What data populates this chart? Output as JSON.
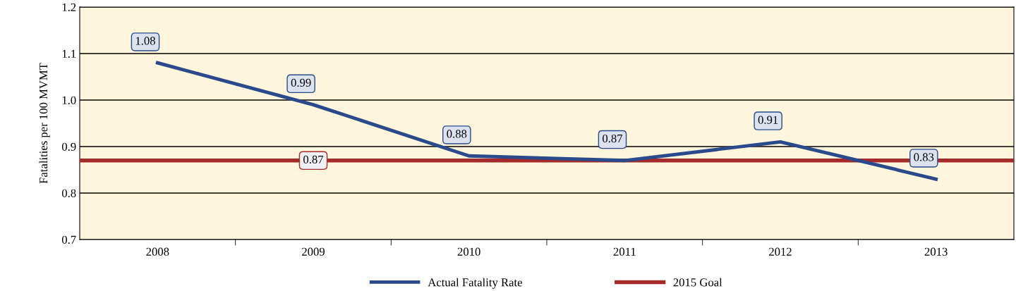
{
  "chart_data": {
    "type": "line",
    "ylabel": "Fatalities per 100 MVMT",
    "categories": [
      "2008",
      "2009",
      "2010",
      "2011",
      "2012",
      "2013"
    ],
    "series": [
      {
        "name": "Actual Fatality Rate",
        "color": "#2b4a8b",
        "values": [
          1.08,
          0.99,
          0.88,
          0.87,
          0.91,
          0.83
        ]
      }
    ],
    "data_labels": true,
    "ref_lines": [
      {
        "axis": "y",
        "value": 0.87,
        "label": "2015 Goal",
        "color": "#a52a2a"
      }
    ],
    "annotations": [
      {
        "text": "0.87",
        "x": "2009",
        "y": 0.87
      }
    ],
    "ylim": [
      0.7,
      1.2
    ],
    "yticks": [
      0.7,
      0.8,
      0.9,
      {
        "value": 1,
        "label": "1.0"
      },
      1.1,
      1.2
    ],
    "grid": "y",
    "legend": "bottom",
    "marker": "none",
    "line_style": "solid"
  }
}
